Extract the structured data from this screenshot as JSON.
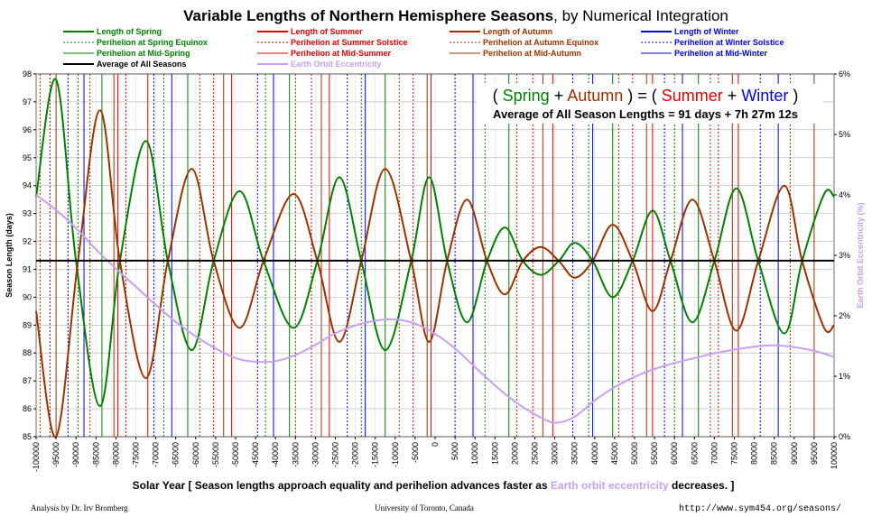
{
  "chart_data": {
    "type": "line",
    "title": "Variable Lengths of Northern Hemisphere Seasons",
    "subtitle": ", by Numerical Integration",
    "ylabel": "Season Length (days)",
    "ylabel_right": "Earth Orbit Eccentricity (%)",
    "xlabel_parts": {
      "before": "Solar Year [ Season lengths approach equality and perihelion advances faster as ",
      "highlight": "Earth orbit eccentricity",
      "after": " decreases. ]"
    },
    "ylim": [
      85,
      98
    ],
    "ylim_right": [
      0,
      6
    ],
    "xlim": [
      -100000,
      100000
    ],
    "xticks": [
      -100000,
      -95000,
      -90000,
      -85000,
      -80000,
      -75000,
      -70000,
      -65000,
      -60000,
      -55000,
      -50000,
      -45000,
      -40000,
      -35000,
      -30000,
      -25000,
      -20000,
      -15000,
      -10000,
      -5000,
      0,
      5000,
      10000,
      15000,
      20000,
      25000,
      30000,
      35000,
      40000,
      45000,
      50000,
      55000,
      60000,
      65000,
      70000,
      75000,
      80000,
      85000,
      90000,
      95000,
      100000
    ],
    "yticks": [
      85,
      86,
      87,
      88,
      89,
      90,
      91,
      92,
      93,
      94,
      95,
      96,
      97,
      98
    ],
    "yticks_right": [
      "0%",
      "1%",
      "2%",
      "3%",
      "4%",
      "5%",
      "6%"
    ],
    "average_days": 91.31,
    "legend": [
      {
        "label": "Length of Spring",
        "color": "#008000",
        "style": "solid-thick"
      },
      {
        "label": "Perihelion at Spring Equinox",
        "color": "#008000",
        "style": "dotted"
      },
      {
        "label": "Perihelion at Mid-Spring",
        "color": "#008000",
        "style": "solid"
      },
      {
        "label": "Average of All Seasons",
        "color": "#000000",
        "style": "solid-thick"
      },
      {
        "label": "Length of Summer",
        "color": "#e00000",
        "style": "solid-thick"
      },
      {
        "label": "Perihelion at Summer Solstice",
        "color": "#e00000",
        "style": "dotted"
      },
      {
        "label": "Perihelion at Mid-Summer",
        "color": "#e00000",
        "style": "solid"
      },
      {
        "label": "Earth Orbit Eccentricity",
        "color": "#c8a0f0",
        "style": "solid-thick"
      },
      {
        "label": "Length of Autumn",
        "color": "#993300",
        "style": "solid-thick"
      },
      {
        "label": "Perihelion at Autumn Equinox",
        "color": "#993300",
        "style": "dotted"
      },
      {
        "label": "Perihelion at Mid-Autumn",
        "color": "#993300",
        "style": "solid"
      },
      {
        "label": "Length of Winter",
        "color": "#0000e0",
        "style": "solid-thick"
      },
      {
        "label": "Perihelion at Winter Solstice",
        "color": "#0000e0",
        "style": "dotted"
      },
      {
        "label": "Perihelion at Mid-Winter",
        "color": "#0000e0",
        "style": "solid"
      }
    ],
    "series": [
      {
        "name": "Length of Spring",
        "color": "#008000",
        "x": [
          -100000,
          -95000,
          -90000,
          -84000,
          -79000,
          -72500,
          -67000,
          -61000,
          -55500,
          -49000,
          -43000,
          -35500,
          -29500,
          -24000,
          -18500,
          -12500,
          -6000,
          -1500,
          3000,
          8000,
          13000,
          17500,
          22000,
          26500,
          31000,
          35000,
          39500,
          44500,
          49500,
          54500,
          59000,
          64500,
          70000,
          75500,
          81000,
          87500,
          92000,
          97500,
          100000
        ],
        "y": [
          93.6,
          97.8,
          91.3,
          86.1,
          91.3,
          95.6,
          91.3,
          88.1,
          91.3,
          93.8,
          91.3,
          88.9,
          91.3,
          94.3,
          91.3,
          88.1,
          91.3,
          94.3,
          91.3,
          89.1,
          91.3,
          92.5,
          91.3,
          90.8,
          91.3,
          91.95,
          91.3,
          90.0,
          91.3,
          93.1,
          91.3,
          89.1,
          91.3,
          93.9,
          91.3,
          88.7,
          91.3,
          93.7,
          93.6
        ]
      },
      {
        "name": "Length of Autumn",
        "color": "#993300",
        "x": [
          -100000,
          -95000,
          -89500,
          -84000,
          -79000,
          -72500,
          -67000,
          -61000,
          -55500,
          -49000,
          -43000,
          -35500,
          -29500,
          -24000,
          -18500,
          -12500,
          -6000,
          -1500,
          3000,
          8000,
          13000,
          17500,
          22000,
          26500,
          31000,
          35000,
          39500,
          44500,
          49500,
          54500,
          59000,
          64500,
          70000,
          75500,
          81000,
          87500,
          92000,
          97500,
          100000
        ],
        "y": [
          89.5,
          85.0,
          91.3,
          96.7,
          91.3,
          87.1,
          91.3,
          94.6,
          91.3,
          88.9,
          91.3,
          93.7,
          91.3,
          88.4,
          91.3,
          94.6,
          91.3,
          88.4,
          91.3,
          93.5,
          91.3,
          90.1,
          91.3,
          91.8,
          91.3,
          90.7,
          91.3,
          92.6,
          91.3,
          89.5,
          91.3,
          93.5,
          91.3,
          88.8,
          91.3,
          94.0,
          91.3,
          88.9,
          89.0
        ]
      },
      {
        "name": "Earth Orbit Eccentricity",
        "color": "#c8a0f0",
        "axis": "right",
        "x": [
          -100000,
          -95000,
          -90000,
          -85000,
          -80000,
          -75000,
          -70000,
          -65000,
          -60000,
          -55000,
          -50000,
          -45000,
          -40000,
          -35000,
          -30000,
          -25000,
          -20000,
          -15000,
          -10000,
          -5000,
          0,
          5000,
          10000,
          15000,
          20000,
          25000,
          30000,
          35000,
          40000,
          45000,
          50000,
          55000,
          60000,
          65000,
          70000,
          75000,
          80000,
          85000,
          90000,
          95000,
          100000
        ],
        "y": [
          4.0,
          3.75,
          3.45,
          3.1,
          2.78,
          2.48,
          2.18,
          1.9,
          1.66,
          1.46,
          1.3,
          1.24,
          1.25,
          1.35,
          1.52,
          1.71,
          1.84,
          1.92,
          1.94,
          1.87,
          1.7,
          1.46,
          1.15,
          0.85,
          0.58,
          0.37,
          0.23,
          0.33,
          0.6,
          0.82,
          0.99,
          1.12,
          1.22,
          1.3,
          1.38,
          1.44,
          1.49,
          1.51,
          1.48,
          1.42,
          1.32
        ]
      }
    ],
    "vertical_markers": {
      "spring_equinox": [
        -89500,
        -68000,
        -42500,
        -18500,
        12500,
        38500,
        60000
      ],
      "spring_mid": [
        -83500,
        -62000,
        -36500,
        -12500,
        18500,
        44500,
        66000
      ],
      "summer_solstice": [
        -96500,
        -77500,
        -55500,
        -31000,
        -5500,
        24500,
        49500,
        71000
      ],
      "summer_mid": [
        -79500,
        -72000,
        -51000,
        -26500,
        -1000,
        29500,
        54500,
        76000
      ],
      "autumn_equinox": [
        -99000,
        -86500,
        -59000,
        -35000,
        -9000,
        20500,
        46000,
        69000,
        89000
      ],
      "autumn_mid": [
        -95000,
        -80500,
        -53000,
        -28500,
        -2000,
        27000,
        53000,
        74500,
        95000
      ],
      "winter_solstice": [
        -92000,
        -70500,
        -44500,
        -22000,
        5000,
        34500,
        57500,
        81500
      ],
      "winter_mid": [
        -88000,
        -66000,
        -40500,
        -17500,
        9500,
        39500,
        62000,
        86000
      ]
    },
    "equation": {
      "open1": "( ",
      "spring": "Spring",
      "plus1": " + ",
      "autumn": "Autumn",
      "close_eq": " ) = ( ",
      "summer": "Summer",
      "plus2": " + ",
      "winter": "Winter",
      "close2": " )"
    },
    "average_text": "Average of All Season Lengths = 91 days + 7h 27m 12s",
    "grid": true
  },
  "footer": {
    "left": "Analysis by Dr. Irv Bromberg",
    "center": "University of Toronto, Canada",
    "right": "http://www.sym454.org/seasons/"
  }
}
